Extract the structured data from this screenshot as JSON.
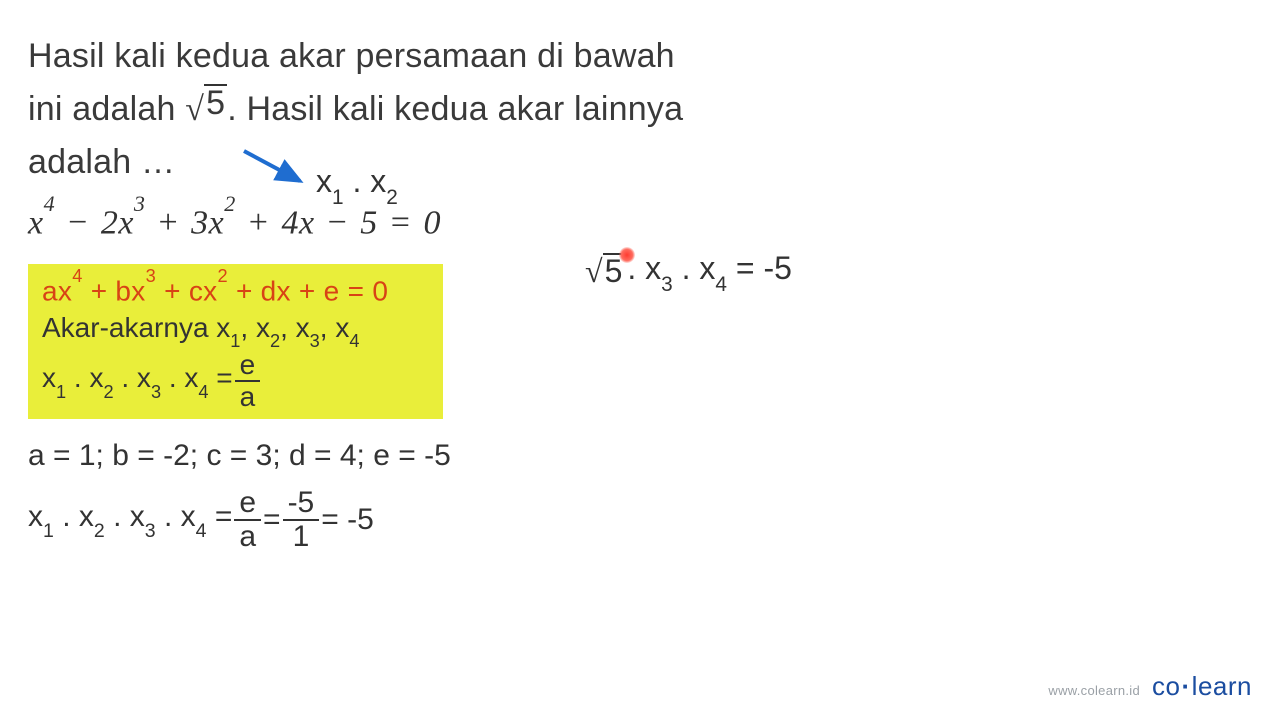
{
  "problem": {
    "line1": "Hasil kali kedua akar persamaan di bawah",
    "line2_a": "ini adalah ",
    "line2_sqrt": "5",
    "line2_b": ". Hasil kali kedua akar lainnya",
    "line3": "adalah …"
  },
  "annotation": {
    "arrow_color": "#1f6dd0",
    "text_html": "x<sub>1</sub> . x<sub>2</sub>"
  },
  "equation_html": "x<sup>4</sup> <span class='op'>−</span> 2x<sup>3</sup> <span class='op'>+</span> 3x<sup>2</sup> <span class='op'>+</span> 4x <span class='op'>−</span> 5 <span class='op'>=</span> 0",
  "highlight": {
    "bg": "#e9ee3a",
    "generic_color": "#d84315",
    "generic_html": "ax<sup>4</sup> + bx<sup>3</sup> + cx<sup>2</sup> + dx + e = 0",
    "roots_html": "Akar-akarnya x<sub>1</sub>, x<sub>2</sub>, x<sub>3</sub>, x<sub>4</sub>",
    "product_left_html": "x<sub>1</sub> . x<sub>2</sub> . x<sub>3</sub> . x<sub>4</sub> = ",
    "frac_num": "e",
    "frac_den": "a"
  },
  "coeffs": "a = 1; b = -2; c = 3; d = 4; e = -5",
  "calc": {
    "left_html": "x<sub>1</sub> . x<sub>2</sub> . x<sub>3</sub> . x<sub>4</sub> = ",
    "f1_num": "e",
    "f1_den": "a",
    "mid": " = ",
    "f2_num": "-5",
    "f2_den": "1",
    "tail": " = -5"
  },
  "side_eq": {
    "sqrt": "5",
    "rest_html": ". x<sub>3</sub> . x<sub>4</sub> = -5",
    "pointer_color": "#ff3b30"
  },
  "footer": {
    "url": "www.colearn.id",
    "logo_a": "co",
    "logo_b": "learn",
    "logo_color": "#1b4da0"
  }
}
